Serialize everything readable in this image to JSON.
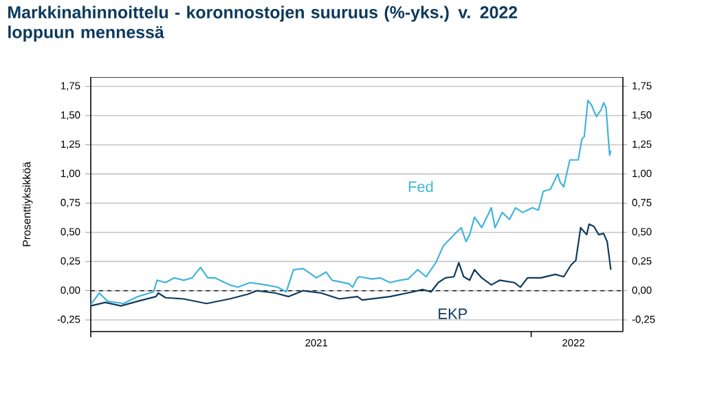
{
  "chart_data": {
    "type": "line",
    "title": "Markkinahinnoittelu - koronnostojen suuruus (%-yks.) v. 2022 loppuun mennessä",
    "ylabel": "Prosenttiyksikköä",
    "xlim": [
      "2021-01-01",
      "2022-03-18"
    ],
    "xticks": [
      {
        "value": "2021-01-01",
        "label": null
      },
      {
        "value": "2021-07-07",
        "label": "2021"
      },
      {
        "value": "2022-01-01",
        "label": null
      },
      {
        "value": "2022-02-05",
        "label": "2022"
      }
    ],
    "ylim": [
      -0.35,
      1.83
    ],
    "yticks": [
      {
        "value": -0.25,
        "label": "-0,25"
      },
      {
        "value": 0,
        "label": "0,00"
      },
      {
        "value": 0.25,
        "label": "0,25"
      },
      {
        "value": 0.5,
        "label": "0,50"
      },
      {
        "value": 0.75,
        "label": "0,75"
      },
      {
        "value": 1,
        "label": "1,00"
      },
      {
        "value": 1.25,
        "label": "1,25"
      },
      {
        "value": 1.5,
        "label": "1,50"
      },
      {
        "value": 1.75,
        "label": "1,75"
      }
    ],
    "y2lim": [
      -0.35,
      1.83
    ],
    "y2ticks": [
      {
        "value": -0.25,
        "label": "-0,25"
      },
      {
        "value": 0,
        "label": "0,00"
      },
      {
        "value": 0.25,
        "label": "0,25"
      },
      {
        "value": 0.5,
        "label": "0,50"
      },
      {
        "value": 0.75,
        "label": "0,75"
      },
      {
        "value": 1,
        "label": "1,00"
      },
      {
        "value": 1.25,
        "label": "1,25"
      },
      {
        "value": 1.5,
        "label": "1,50"
      },
      {
        "value": 1.75,
        "label": "1,75"
      }
    ],
    "grid": "y",
    "legend": false,
    "marker": "none",
    "line_style": "solid",
    "ref_lines": [
      {
        "axis": "y",
        "value": 0,
        "color": "#000000",
        "line_style": "dashed"
      }
    ],
    "series": [
      {
        "name": "Fed",
        "color": "#3fb4dc",
        "x": [
          "2021-01-01",
          "2021-01-08",
          "2021-01-15",
          "2021-01-28",
          "2021-02-09",
          "2021-02-22",
          "2021-02-25",
          "2021-03-04",
          "2021-03-11",
          "2021-03-19",
          "2021-03-26",
          "2021-04-02",
          "2021-04-08",
          "2021-04-14",
          "2021-04-26",
          "2021-05-03",
          "2021-05-13",
          "2021-05-26",
          "2021-06-05",
          "2021-06-12",
          "2021-06-18",
          "2021-06-26",
          "2021-07-03",
          "2021-07-07",
          "2021-07-15",
          "2021-07-20",
          "2021-08-03",
          "2021-08-06",
          "2021-08-10",
          "2021-08-12",
          "2021-08-22",
          "2021-08-29",
          "2021-09-06",
          "2021-09-14",
          "2021-09-21",
          "2021-09-25",
          "2021-09-29",
          "2021-10-06",
          "2021-10-14",
          "2021-10-20",
          "2021-10-29",
          "2021-11-04",
          "2021-11-08",
          "2021-11-11",
          "2021-11-15",
          "2021-11-21",
          "2021-11-29",
          "2021-12-02",
          "2021-12-08",
          "2021-12-14",
          "2021-12-19",
          "2021-12-25",
          "2022-01-02",
          "2022-01-07",
          "2022-01-11",
          "2022-01-17",
          "2022-01-23",
          "2022-01-25",
          "2022-01-28",
          "2022-02-02",
          "2022-02-09",
          "2022-02-12",
          "2022-02-14",
          "2022-02-17",
          "2022-02-20",
          "2022-02-24",
          "2022-02-28",
          "2022-03-02",
          "2022-03-04",
          "2022-03-07",
          "2022-03-08"
        ],
        "values": [
          -0.12,
          -0.02,
          -0.09,
          -0.11,
          -0.05,
          -0.01,
          0.09,
          0.07,
          0.11,
          0.09,
          0.11,
          0.2,
          0.11,
          0.11,
          0.05,
          0.03,
          0.07,
          0.05,
          0.03,
          -0.01,
          0.18,
          0.19,
          0.14,
          0.11,
          0.16,
          0.09,
          0.06,
          0.03,
          0.11,
          0.12,
          0.1,
          0.11,
          0.07,
          0.09,
          0.1,
          0.14,
          0.18,
          0.12,
          0.24,
          0.38,
          0.48,
          0.54,
          0.42,
          0.48,
          0.63,
          0.54,
          0.71,
          0.54,
          0.67,
          0.61,
          0.71,
          0.67,
          0.71,
          0.69,
          0.85,
          0.87,
          1.0,
          0.93,
          0.89,
          1.12,
          1.12,
          1.3,
          1.32,
          1.63,
          1.59,
          1.49,
          1.55,
          1.61,
          1.57,
          1.16,
          1.2
        ]
      },
      {
        "name": "EKP",
        "color": "#0d3a5c",
        "x": [
          "2021-01-01",
          "2021-01-13",
          "2021-01-26",
          "2021-02-09",
          "2021-02-24",
          "2021-02-26",
          "2021-03-04",
          "2021-03-19",
          "2021-04-07",
          "2021-04-26",
          "2021-05-11",
          "2021-05-19",
          "2021-06-03",
          "2021-06-14",
          "2021-06-26",
          "2021-07-11",
          "2021-07-26",
          "2021-08-10",
          "2021-08-14",
          "2021-09-06",
          "2021-09-25",
          "2021-10-03",
          "2021-10-10",
          "2021-10-16",
          "2021-10-22",
          "2021-10-29",
          "2021-11-02",
          "2021-11-06",
          "2021-11-11",
          "2021-11-15",
          "2021-11-21",
          "2021-11-29",
          "2021-12-06",
          "2021-12-18",
          "2021-12-23",
          "2021-12-29",
          "2022-01-09",
          "2022-01-21",
          "2022-01-28",
          "2022-02-03",
          "2022-02-07",
          "2022-02-11",
          "2022-02-16",
          "2022-02-18",
          "2022-02-22",
          "2022-02-26",
          "2022-03-02",
          "2022-03-05",
          "2022-03-08"
        ],
        "values": [
          -0.13,
          -0.1,
          -0.13,
          -0.09,
          -0.05,
          -0.02,
          -0.06,
          -0.07,
          -0.11,
          -0.07,
          -0.03,
          0.0,
          -0.02,
          -0.05,
          0.0,
          -0.02,
          -0.07,
          -0.05,
          -0.08,
          -0.05,
          -0.01,
          0.01,
          -0.01,
          0.07,
          0.11,
          0.12,
          0.24,
          0.12,
          0.09,
          0.18,
          0.11,
          0.05,
          0.09,
          0.07,
          0.03,
          0.11,
          0.11,
          0.14,
          0.12,
          0.22,
          0.26,
          0.54,
          0.48,
          0.57,
          0.55,
          0.48,
          0.49,
          0.42,
          0.18
        ]
      }
    ]
  }
}
